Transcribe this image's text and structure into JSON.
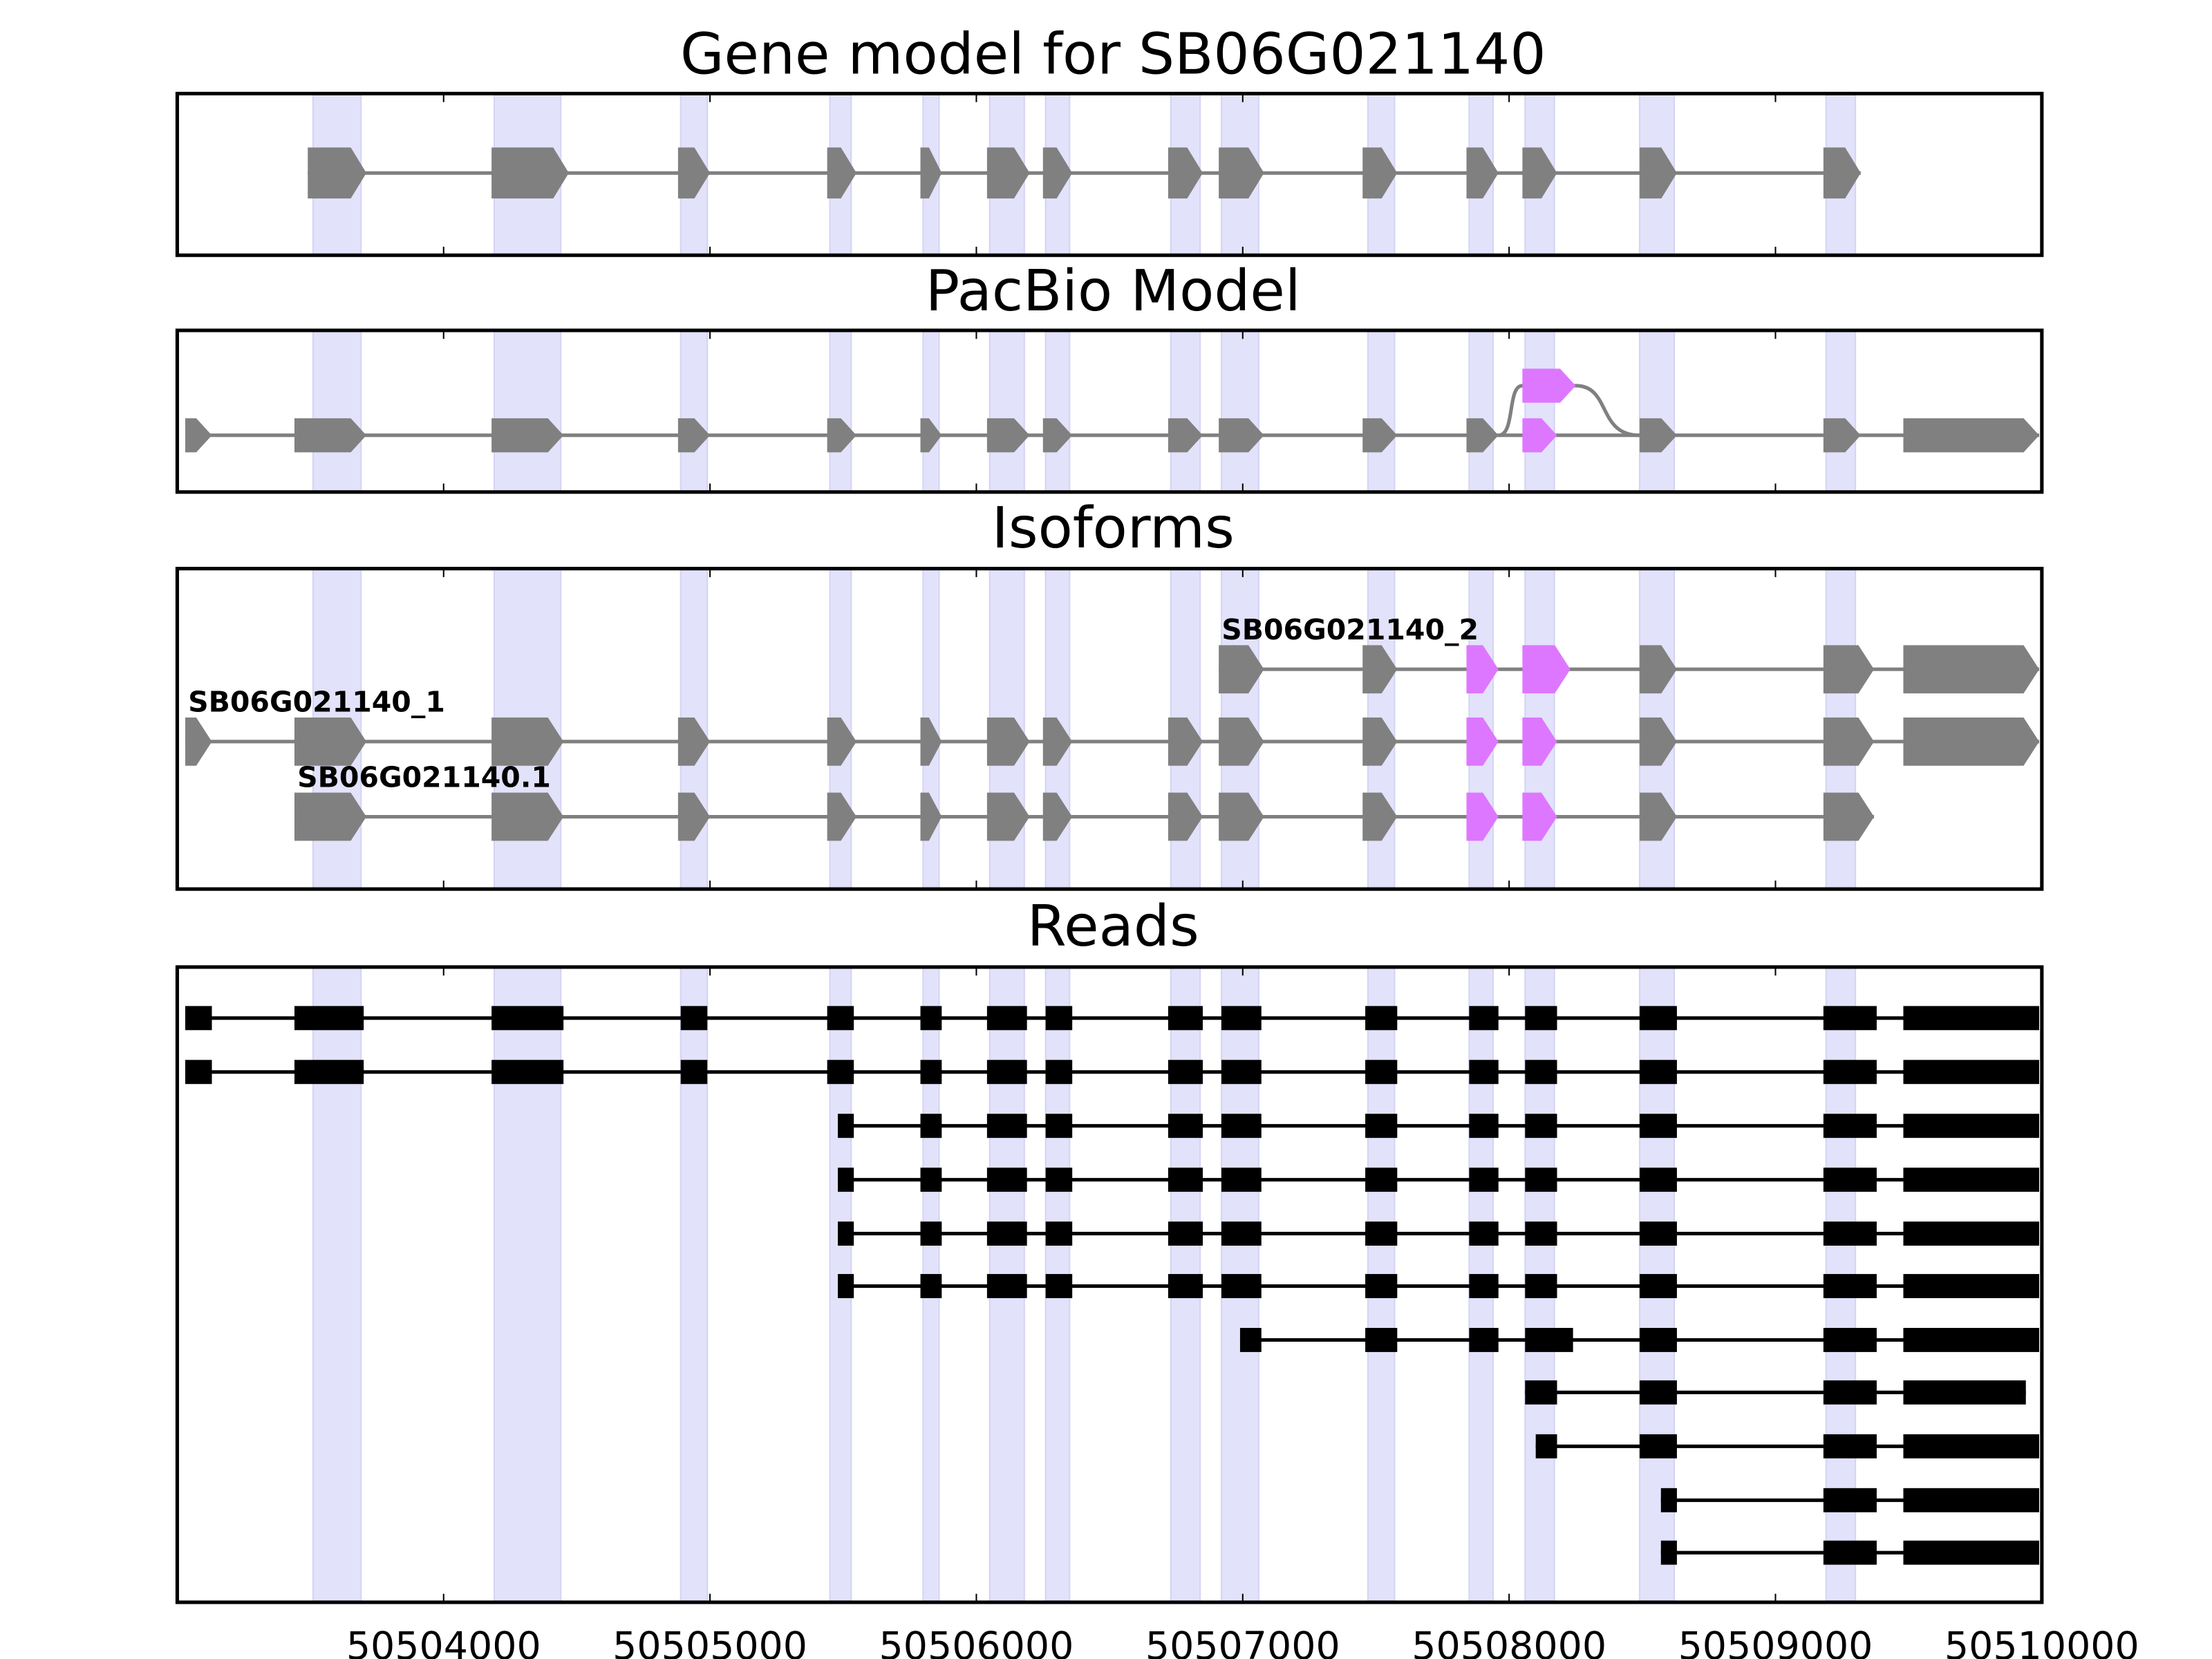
{
  "chart_data": {
    "type": "gene-track",
    "xlim": [
      50503000,
      50510000
    ],
    "xticks": [
      50504000,
      50505000,
      50506000,
      50507000,
      50508000,
      50509000,
      50510000
    ],
    "xtick_labels": [
      "50504000",
      "50505000",
      "50506000",
      "50507000",
      "50508000",
      "50509000",
      "50510000"
    ],
    "colors": {
      "exon": "#808080",
      "alt_exon": "#dd77ff",
      "read": "#000000",
      "highlight": "#e2e2fb",
      "intron": "#808080"
    },
    "highlight_regions": [
      [
        50503510,
        50503690
      ],
      [
        50504190,
        50504440
      ],
      [
        50504890,
        50504990
      ],
      [
        50505450,
        50505530
      ],
      [
        50505800,
        50505860
      ],
      [
        50506050,
        50506180
      ],
      [
        50506260,
        50506350
      ],
      [
        50506730,
        50506840
      ],
      [
        50506920,
        50507060
      ],
      [
        50507470,
        50507570
      ],
      [
        50507850,
        50507940
      ],
      [
        50508060,
        50508170
      ],
      [
        50508490,
        50508620
      ],
      [
        50509190,
        50509300
      ]
    ],
    "panels": [
      {
        "title": "Gene model for SB06G021140",
        "kind": "model",
        "rows": 1,
        "tracks": [
          {
            "row": 0,
            "exons": [
              [
                50503490,
                50503710
              ],
              [
                50504180,
                50504470
              ],
              [
                50504880,
                50505000
              ],
              [
                50505440,
                50505550
              ],
              [
                50505790,
                50505870
              ],
              [
                50506040,
                50506200
              ],
              [
                50506250,
                50506360
              ],
              [
                50506720,
                50506850
              ],
              [
                50506910,
                50507080
              ],
              [
                50507450,
                50507580
              ],
              [
                50507840,
                50507960
              ],
              [
                50508050,
                50508180
              ],
              [
                50508490,
                50508630
              ],
              [
                50509180,
                50509320
              ]
            ],
            "alt": []
          }
        ]
      },
      {
        "title": "PacBio Model",
        "kind": "pacbio",
        "rows": 1,
        "tracks": [
          {
            "row": 0,
            "exons": [
              [
                50503030,
                50503130
              ],
              [
                50503440,
                50503710
              ],
              [
                50504180,
                50504450
              ],
              [
                50504880,
                50505000
              ],
              [
                50505440,
                50505550
              ],
              [
                50505790,
                50505870
              ],
              [
                50506040,
                50506200
              ],
              [
                50506250,
                50506360
              ],
              [
                50506720,
                50506850
              ],
              [
                50506910,
                50507080
              ],
              [
                50507450,
                50507580
              ],
              [
                50507840,
                50507960
              ],
              [
                50508050,
                50508180
              ],
              [
                50508490,
                50508630
              ],
              [
                50509180,
                50509320
              ],
              [
                50509480,
                50509990
              ]
            ],
            "alt": [
              12
            ]
          }
        ],
        "branch": {
          "from": 50507960,
          "to": 50508490,
          "exon": [
            50508050,
            50508250
          ]
        }
      },
      {
        "title": "Isoforms",
        "kind": "isoforms",
        "rows": 3,
        "tracks": [
          {
            "row": 0,
            "label": "SB06G021140_2",
            "exons": [
              [
                50506910,
                50507080
              ],
              [
                50507450,
                50507580
              ],
              [
                50507840,
                50507960
              ],
              [
                50508050,
                50508230
              ],
              [
                50508490,
                50508630
              ],
              [
                50509180,
                50509370
              ],
              [
                50509480,
                50509990
              ]
            ],
            "alt": [
              2,
              3
            ]
          },
          {
            "row": 1,
            "label": "SB06G021140_1",
            "exons": [
              [
                50503030,
                50503130
              ],
              [
                50503440,
                50503710
              ],
              [
                50504180,
                50504450
              ],
              [
                50504880,
                50505000
              ],
              [
                50505440,
                50505550
              ],
              [
                50505790,
                50505870
              ],
              [
                50506040,
                50506200
              ],
              [
                50506250,
                50506360
              ],
              [
                50506720,
                50506850
              ],
              [
                50506910,
                50507080
              ],
              [
                50507450,
                50507580
              ],
              [
                50507840,
                50507960
              ],
              [
                50508050,
                50508180
              ],
              [
                50508490,
                50508630
              ],
              [
                50509180,
                50509370
              ],
              [
                50509480,
                50509990
              ]
            ],
            "alt": [
              11,
              12
            ]
          },
          {
            "row": 2,
            "label": "SB06G021140.1",
            "exons": [
              [
                50503440,
                50503710
              ],
              [
                50504180,
                50504450
              ],
              [
                50504880,
                50505000
              ],
              [
                50505440,
                50505550
              ],
              [
                50505790,
                50505870
              ],
              [
                50506040,
                50506200
              ],
              [
                50506250,
                50506360
              ],
              [
                50506720,
                50506850
              ],
              [
                50506910,
                50507080
              ],
              [
                50507450,
                50507580
              ],
              [
                50507840,
                50507960
              ],
              [
                50508050,
                50508180
              ],
              [
                50508490,
                50508630
              ],
              [
                50509180,
                50509370
              ]
            ],
            "alt": [
              10,
              11
            ]
          }
        ]
      },
      {
        "title": "Reads",
        "kind": "reads",
        "rows": 11,
        "tracks": [
          {
            "row": 0,
            "exons": [
              [
                50503030,
                50503130
              ],
              [
                50503440,
                50503700
              ],
              [
                50504180,
                50504450
              ],
              [
                50504890,
                50504990
              ],
              [
                50505440,
                50505540
              ],
              [
                50505790,
                50505870
              ],
              [
                50506040,
                50506190
              ],
              [
                50506260,
                50506360
              ],
              [
                50506720,
                50506850
              ],
              [
                50506920,
                50507070
              ],
              [
                50507460,
                50507580
              ],
              [
                50507850,
                50507960
              ],
              [
                50508060,
                50508180
              ],
              [
                50508490,
                50508630
              ],
              [
                50509180,
                50509380
              ],
              [
                50509480,
                50509990
              ]
            ]
          },
          {
            "row": 1,
            "exons": [
              [
                50503030,
                50503130
              ],
              [
                50503440,
                50503700
              ],
              [
                50504180,
                50504450
              ],
              [
                50504890,
                50504990
              ],
              [
                50505440,
                50505540
              ],
              [
                50505790,
                50505870
              ],
              [
                50506040,
                50506190
              ],
              [
                50506260,
                50506360
              ],
              [
                50506720,
                50506850
              ],
              [
                50506920,
                50507070
              ],
              [
                50507460,
                50507580
              ],
              [
                50507850,
                50507960
              ],
              [
                50508060,
                50508180
              ],
              [
                50508490,
                50508630
              ],
              [
                50509180,
                50509380
              ],
              [
                50509480,
                50509990
              ]
            ]
          },
          {
            "row": 2,
            "exons": [
              [
                50505480,
                50505540
              ],
              [
                50505790,
                50505870
              ],
              [
                50506040,
                50506190
              ],
              [
                50506260,
                50506360
              ],
              [
                50506720,
                50506850
              ],
              [
                50506920,
                50507070
              ],
              [
                50507460,
                50507580
              ],
              [
                50507850,
                50507960
              ],
              [
                50508060,
                50508180
              ],
              [
                50508490,
                50508630
              ],
              [
                50509180,
                50509380
              ],
              [
                50509480,
                50509990
              ]
            ]
          },
          {
            "row": 3,
            "exons": [
              [
                50505480,
                50505540
              ],
              [
                50505790,
                50505870
              ],
              [
                50506040,
                50506190
              ],
              [
                50506260,
                50506360
              ],
              [
                50506720,
                50506850
              ],
              [
                50506920,
                50507070
              ],
              [
                50507460,
                50507580
              ],
              [
                50507850,
                50507960
              ],
              [
                50508060,
                50508180
              ],
              [
                50508490,
                50508630
              ],
              [
                50509180,
                50509380
              ],
              [
                50509480,
                50509990
              ]
            ]
          },
          {
            "row": 4,
            "exons": [
              [
                50505480,
                50505540
              ],
              [
                50505790,
                50505870
              ],
              [
                50506040,
                50506190
              ],
              [
                50506260,
                50506360
              ],
              [
                50506720,
                50506850
              ],
              [
                50506920,
                50507070
              ],
              [
                50507460,
                50507580
              ],
              [
                50507850,
                50507960
              ],
              [
                50508060,
                50508180
              ],
              [
                50508490,
                50508630
              ],
              [
                50509180,
                50509380
              ],
              [
                50509480,
                50509990
              ]
            ]
          },
          {
            "row": 5,
            "exons": [
              [
                50505480,
                50505540
              ],
              [
                50505790,
                50505870
              ],
              [
                50506040,
                50506190
              ],
              [
                50506260,
                50506360
              ],
              [
                50506720,
                50506850
              ],
              [
                50506920,
                50507070
              ],
              [
                50507460,
                50507580
              ],
              [
                50507850,
                50507960
              ],
              [
                50508060,
                50508180
              ],
              [
                50508490,
                50508630
              ],
              [
                50509180,
                50509380
              ],
              [
                50509480,
                50509990
              ]
            ]
          },
          {
            "row": 6,
            "exons": [
              [
                50506990,
                50507070
              ],
              [
                50507460,
                50507580
              ],
              [
                50507850,
                50507960
              ],
              [
                50508060,
                50508240
              ],
              [
                50508490,
                50508630
              ],
              [
                50509180,
                50509380
              ],
              [
                50509480,
                50509990
              ]
            ]
          },
          {
            "row": 7,
            "exons": [
              [
                50508060,
                50508180
              ],
              [
                50508490,
                50508630
              ],
              [
                50509180,
                50509380
              ],
              [
                50509480,
                50509940
              ]
            ]
          },
          {
            "row": 8,
            "exons": [
              [
                50508100,
                50508180
              ],
              [
                50508490,
                50508630
              ],
              [
                50509180,
                50509380
              ],
              [
                50509480,
                50509990
              ]
            ]
          },
          {
            "row": 9,
            "exons": [
              [
                50508570,
                50508630
              ],
              [
                50509180,
                50509380
              ],
              [
                50509480,
                50509990
              ]
            ]
          },
          {
            "row": 10,
            "exons": [
              [
                50508570,
                50508630
              ],
              [
                50509180,
                50509380
              ],
              [
                50509480,
                50509990
              ]
            ]
          }
        ]
      }
    ]
  }
}
